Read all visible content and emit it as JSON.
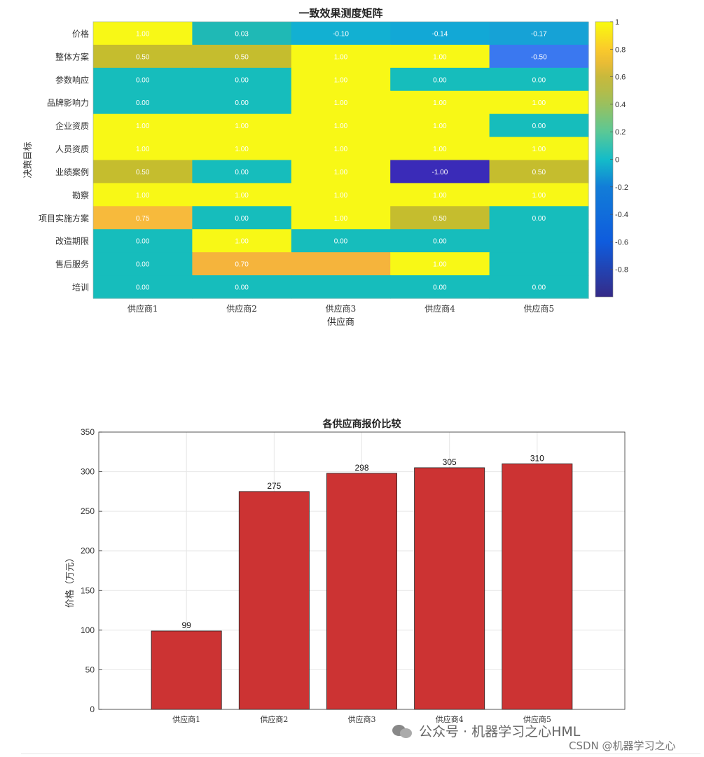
{
  "heatmap": {
    "chart_data": {
      "type": "heatmap",
      "title": "一致效果测度矩阵",
      "xlabel": "供应商",
      "ylabel": "决策目标",
      "x_categories": [
        "供应商1",
        "供应商2",
        "供应商3",
        "供应商4",
        "供应商5"
      ],
      "y_categories": [
        "价格",
        "整体方案",
        "参数响应",
        "品牌影响力",
        "企业资质",
        "人员资质",
        "业绩案例",
        "勘察",
        "项目实施方案",
        "改造期限",
        "售后服务",
        "培训"
      ],
      "values": [
        [
          1.0,
          0.03,
          -0.1,
          -0.14,
          -0.17
        ],
        [
          0.5,
          0.5,
          1.0,
          1.0,
          -0.5
        ],
        [
          0.0,
          0.0,
          1.0,
          0.0,
          0.0
        ],
        [
          0.0,
          0.0,
          1.0,
          1.0,
          1.0
        ],
        [
          1.0,
          1.0,
          1.0,
          1.0,
          0.0
        ],
        [
          1.0,
          1.0,
          1.0,
          1.0,
          1.0
        ],
        [
          0.5,
          0.0,
          1.0,
          -1.0,
          0.5
        ],
        [
          1.0,
          1.0,
          1.0,
          1.0,
          1.0
        ],
        [
          0.75,
          0.0,
          1.0,
          0.5,
          0.0
        ],
        [
          0.0,
          1.0,
          0.0,
          0.0,
          0.0
        ],
        [
          0.0,
          0.7,
          0.7,
          1.0,
          0.0
        ],
        [
          0.0,
          0.0,
          0.0,
          0.0,
          0.0
        ]
      ],
      "colorbar": {
        "range": [
          -1,
          1
        ],
        "ticks": [
          "1",
          "0.8",
          "0.6",
          "0.4",
          "0.2",
          "0",
          "-0.2",
          "-0.4",
          "-0.6",
          "-0.8"
        ],
        "colormap": "parula"
      },
      "cell_labels_visible": [
        [
          "1.00",
          "0.03",
          "-0.10",
          "-0.14",
          "-0.17"
        ],
        [
          "0.50",
          "0.50",
          "1.00",
          "1.00",
          "-0.50"
        ],
        [
          "0.00",
          "0.00",
          "1.00",
          "0.00",
          "0.00"
        ],
        [
          "0.00",
          "0.00",
          "1.00",
          "1.00",
          "1.00"
        ],
        [
          "1.00",
          "1.00",
          "1.00",
          "1.00",
          "0.00"
        ],
        [
          "1.00",
          "1.00",
          "1.00",
          "1.00",
          "1.00"
        ],
        [
          "0.50",
          "0.00",
          "1.00",
          "-1.00",
          "0.50"
        ],
        [
          "1.00",
          "1.00",
          "1.00",
          "1.00",
          "1.00"
        ],
        [
          "0.75",
          "0.00",
          "1.00",
          "0.50",
          "0.00"
        ],
        [
          "0.00",
          "1.00",
          "0.00",
          "0.00",
          ""
        ],
        [
          "0.00",
          "0.70",
          "",
          "1.00",
          ""
        ],
        [
          "0.00",
          "0.00",
          "",
          "0.00",
          "0.00"
        ]
      ]
    }
  },
  "bars": {
    "chart_data": {
      "type": "bar",
      "title": "各供应商报价比较",
      "xlabel": "",
      "ylabel": "价格（万元）",
      "categories": [
        "供应商1",
        "供应商2",
        "供应商3",
        "供应商4",
        "供应商5"
      ],
      "values": [
        99,
        275,
        298,
        305,
        310
      ],
      "data_labels": [
        "99",
        "275",
        "298",
        "305",
        "310"
      ],
      "ylim": [
        0,
        350
      ],
      "yticks": [
        0,
        50,
        100,
        150,
        200,
        250,
        300,
        350
      ],
      "grid": true,
      "bar_color": "#cc3333"
    }
  },
  "watermark": {
    "main": "公众号 · 机器学习之心HML",
    "sub": "CSDN @机器学习之心"
  }
}
